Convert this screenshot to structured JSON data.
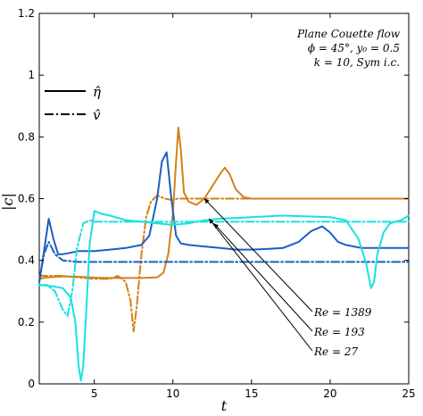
{
  "chart_data": {
    "type": "line",
    "xlabel": "t",
    "ylabel": "|c|",
    "xlim": [
      1.5,
      25
    ],
    "ylim": [
      0,
      1.2
    ],
    "xticks": [
      5,
      10,
      15,
      20,
      25
    ],
    "yticks": [
      0,
      0.2,
      0.4,
      0.6,
      0.8,
      1,
      1.2
    ],
    "ytick_labels": [
      "0",
      "0.2",
      "0.4",
      "0.6",
      "0.8",
      "1",
      "1.2"
    ],
    "grid": false,
    "annotation_lines": [
      "Plane Couette flow",
      "ϕ = 45°,  y₀ = 0.5",
      "k = 10,  Sym i.c."
    ],
    "legend": {
      "placement": "top-left",
      "entries": [
        {
          "label": "η̂",
          "style": "solid"
        },
        {
          "label": "v̂",
          "style": "dashdot"
        }
      ]
    },
    "re_labels": [
      {
        "text": "Re = 1389",
        "color": "#d4801a",
        "points_to": [
          12.0,
          0.6
        ]
      },
      {
        "text": "Re = 193",
        "color": "#1a5fc4",
        "points_to": [
          12.6,
          0.52
        ]
      },
      {
        "text": "Re = 27",
        "color": "#19e0e0",
        "points_to": [
          12.3,
          0.535
        ]
      }
    ],
    "series": [
      {
        "name": "Re = 1389",
        "var": "eta",
        "style": "solid",
        "color": "#d4801a",
        "x": [
          1.5,
          2,
          3,
          4,
          5,
          6,
          7,
          8,
          9,
          9.4,
          9.7,
          10.0,
          10.2,
          10.35,
          10.5,
          10.7,
          11,
          11.5,
          12,
          12.5,
          13,
          13.3,
          13.6,
          14,
          14.5,
          15,
          17,
          20,
          22,
          25
        ],
        "y": [
          0.34,
          0.345,
          0.348,
          0.347,
          0.344,
          0.343,
          0.343,
          0.343,
          0.345,
          0.36,
          0.42,
          0.55,
          0.72,
          0.83,
          0.76,
          0.62,
          0.59,
          0.58,
          0.6,
          0.64,
          0.68,
          0.7,
          0.68,
          0.63,
          0.605,
          0.6,
          0.6,
          0.6,
          0.6,
          0.6
        ]
      },
      {
        "name": "Re = 1389",
        "var": "v",
        "style": "dashdot",
        "color": "#d4801a",
        "x": [
          1.5,
          2,
          3,
          4,
          5,
          6,
          6.5,
          7,
          7.3,
          7.5,
          7.7,
          8,
          8.3,
          8.6,
          9,
          9.5,
          10,
          10.3,
          11,
          12,
          15,
          20,
          25
        ],
        "y": [
          0.35,
          0.35,
          0.35,
          0.345,
          0.34,
          0.34,
          0.35,
          0.33,
          0.27,
          0.17,
          0.25,
          0.42,
          0.54,
          0.59,
          0.61,
          0.6,
          0.595,
          0.6,
          0.6,
          0.6,
          0.6,
          0.6,
          0.6
        ]
      },
      {
        "name": "Re = 193",
        "var": "eta",
        "style": "solid",
        "color": "#1a5fc4",
        "x": [
          1.5,
          1.8,
          2.1,
          2.4,
          2.7,
          3,
          4,
          5,
          6,
          7,
          8,
          8.5,
          9,
          9.3,
          9.6,
          9.9,
          10.2,
          10.5,
          11,
          12,
          13,
          14,
          15,
          16,
          17,
          18,
          18.8,
          19.5,
          20,
          20.5,
          21,
          22,
          23,
          24,
          25
        ],
        "y": [
          0.33,
          0.43,
          0.535,
          0.47,
          0.42,
          0.42,
          0.43,
          0.43,
          0.435,
          0.44,
          0.45,
          0.48,
          0.6,
          0.72,
          0.75,
          0.6,
          0.48,
          0.455,
          0.45,
          0.445,
          0.44,
          0.435,
          0.435,
          0.437,
          0.44,
          0.46,
          0.495,
          0.51,
          0.49,
          0.46,
          0.45,
          0.44,
          0.44,
          0.44,
          0.44
        ]
      },
      {
        "name": "Re = 193",
        "var": "v",
        "style": "dashdot",
        "color": "#1a5fc4",
        "x": [
          1.5,
          1.8,
          2.1,
          2.5,
          3,
          4,
          5,
          7,
          10,
          15,
          20,
          25
        ],
        "y": [
          0.33,
          0.42,
          0.46,
          0.42,
          0.4,
          0.395,
          0.395,
          0.395,
          0.395,
          0.395,
          0.395,
          0.395
        ]
      },
      {
        "name": "Re = 27",
        "var": "eta",
        "style": "solid",
        "color": "#19e0e0",
        "x": [
          1.5,
          2,
          2.5,
          3,
          3.5,
          3.8,
          4.0,
          4.15,
          4.3,
          4.5,
          4.7,
          5,
          5.5,
          6,
          7,
          8,
          9,
          10,
          11,
          12,
          13,
          15,
          17,
          20,
          21,
          21.8,
          22.3,
          22.6,
          22.8,
          23.0,
          23.4,
          23.8,
          24.5,
          25
        ],
        "y": [
          0.32,
          0.318,
          0.315,
          0.31,
          0.28,
          0.2,
          0.06,
          0.01,
          0.06,
          0.25,
          0.45,
          0.56,
          0.55,
          0.545,
          0.53,
          0.525,
          0.52,
          0.515,
          0.52,
          0.53,
          0.535,
          0.54,
          0.545,
          0.54,
          0.53,
          0.47,
          0.39,
          0.31,
          0.33,
          0.42,
          0.49,
          0.52,
          0.53,
          0.545
        ]
      },
      {
        "name": "Re = 27",
        "var": "v",
        "style": "dashdot",
        "color": "#19e0e0",
        "x": [
          1.5,
          2,
          2.5,
          3,
          3.3,
          3.6,
          3.9,
          4.3,
          4.7,
          5,
          6,
          8,
          10,
          15,
          20,
          25
        ],
        "y": [
          0.32,
          0.32,
          0.3,
          0.24,
          0.22,
          0.3,
          0.44,
          0.52,
          0.53,
          0.525,
          0.525,
          0.525,
          0.525,
          0.525,
          0.525,
          0.525
        ]
      }
    ]
  }
}
